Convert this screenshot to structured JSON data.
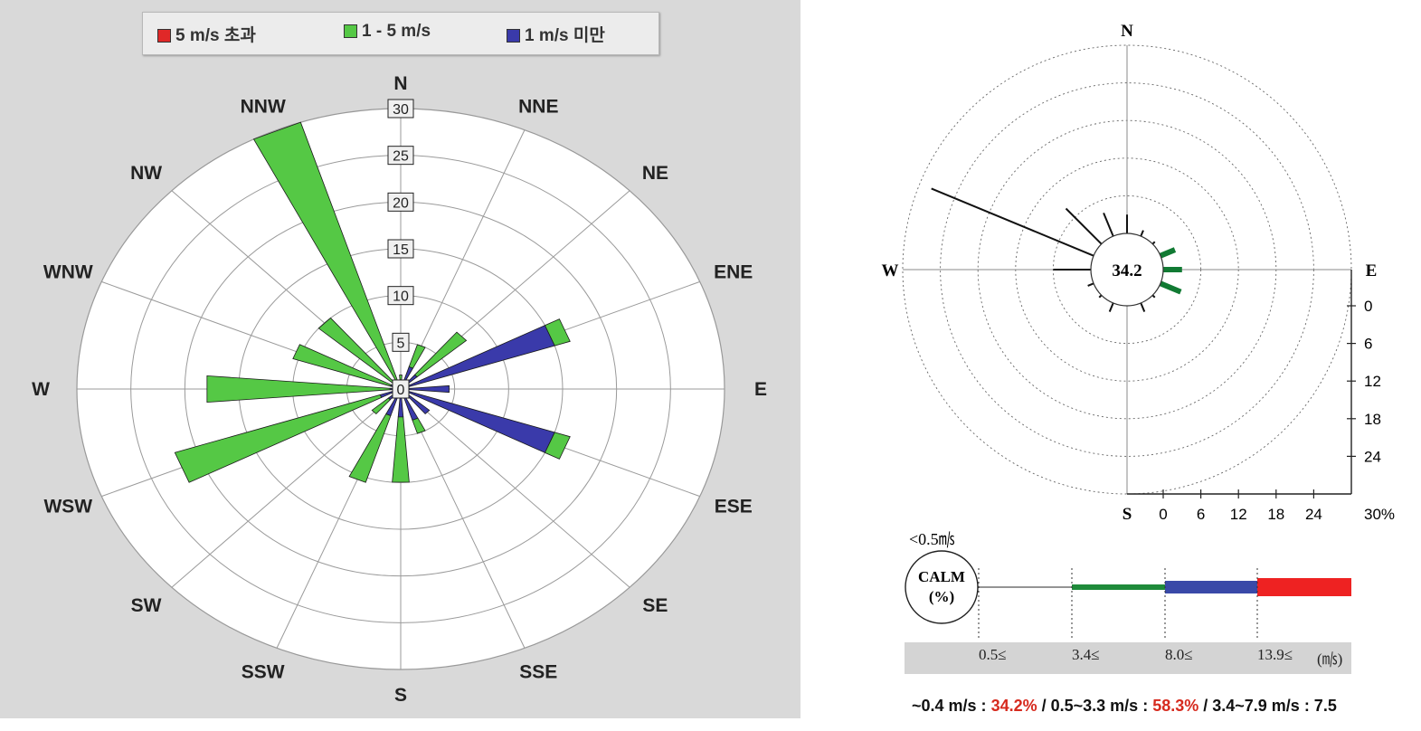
{
  "legend": [
    {
      "label": "5 m/s 초과",
      "color": "#e02828"
    },
    {
      "label": "1 - 5 m/s",
      "color": "#55c845"
    },
    {
      "label": "1 m/s 미만",
      "color": "#3a3aaa"
    }
  ],
  "chart_data": [
    {
      "type": "wind-rose",
      "directions": [
        "N",
        "NNE",
        "NE",
        "ENE",
        "E",
        "ESE",
        "SE",
        "SSE",
        "S",
        "SSW",
        "SW",
        "WSW",
        "W",
        "WNW",
        "NW",
        "NNW"
      ],
      "radial_ticks": [
        "0",
        "5",
        "10",
        "15",
        "20",
        "25",
        "30"
      ],
      "rmax": 30,
      "legend_placement": "top",
      "series": [
        {
          "name": "1 m/s 미만",
          "color": "#3a3aaa",
          "values": [
            1.0,
            2.5,
            2.0,
            15.0,
            4.5,
            15.0,
            3.5,
            3.5,
            3.0,
            3.0,
            1.5,
            2.0,
            1.0,
            1.0,
            1.0,
            1.0
          ]
        },
        {
          "name": "1 - 5 m/s",
          "color": "#55c845",
          "values": [
            0.5,
            2.5,
            6.0,
            1.5,
            0,
            1.5,
            0,
            1.5,
            7.0,
            7.5,
            2.0,
            20.0,
            17.0,
            9.5,
            9.0,
            29.0
          ]
        },
        {
          "name": "5 m/s 초과",
          "color": "#e02828",
          "values": [
            0,
            0,
            0,
            0,
            0,
            0,
            0,
            0,
            0,
            0,
            0,
            0,
            0,
            0,
            0,
            0
          ]
        }
      ]
    },
    {
      "type": "wind-rose",
      "directions_labeled": [
        "N",
        "E",
        "S",
        "W"
      ],
      "calm_percent_label": "34.2",
      "scale_labels": [
        "0",
        "6",
        "12",
        "18",
        "24",
        "30%"
      ],
      "petals": [
        {
          "angle_deg": 0,
          "percent": 3,
          "color": "#111111"
        },
        {
          "angle_deg": 22.5,
          "percent": 1,
          "color": "#111111"
        },
        {
          "angle_deg": 45,
          "percent": 0.5,
          "color": "#111111"
        },
        {
          "angle_deg": 67.5,
          "percent": 2.5,
          "color": "#117a33"
        },
        {
          "angle_deg": 90,
          "percent": 3,
          "color": "#117a33"
        },
        {
          "angle_deg": 112.5,
          "percent": 3.5,
          "color": "#117a33"
        },
        {
          "angle_deg": 135,
          "percent": 0.5,
          "color": "#111111"
        },
        {
          "angle_deg": 157.5,
          "percent": 1.5,
          "color": "#111111"
        },
        {
          "angle_deg": 180,
          "percent": 0,
          "color": "#111111"
        },
        {
          "angle_deg": 202.5,
          "percent": 1.5,
          "color": "#111111"
        },
        {
          "angle_deg": 225,
          "percent": 0.5,
          "color": "#111111"
        },
        {
          "angle_deg": 247.5,
          "percent": 1,
          "color": "#111111"
        },
        {
          "angle_deg": 270,
          "percent": 6,
          "color": "#111111"
        },
        {
          "angle_deg": 292.5,
          "percent": 28,
          "color": "#111111"
        },
        {
          "angle_deg": 315,
          "percent": 8,
          "color": "#111111"
        },
        {
          "angle_deg": 337.5,
          "percent": 4,
          "color": "#111111"
        }
      ]
    }
  ],
  "calm_legend": {
    "unit_label": "<0.5㎧",
    "calm_title": "CALM",
    "calm_sub": "(%)",
    "ticks": [
      "0.5≤",
      "3.4≤",
      "8.0≤",
      "13.9≤",
      "(㎧)"
    ],
    "segments": [
      {
        "color": "#555555",
        "style": "thin"
      },
      {
        "color": "#1e8a3a",
        "style": "thick"
      },
      {
        "color": "#3949a8",
        "style": "thick"
      },
      {
        "color": "#ee2222",
        "style": "thick"
      }
    ]
  },
  "footer": {
    "t1": "~0.4 m/s : ",
    "v1": "34.2%",
    "t2": " / 0.5~3.3 m/s : ",
    "v2": "58.3%",
    "t3": " / 3.4~7.9 m/s : 7.5"
  }
}
